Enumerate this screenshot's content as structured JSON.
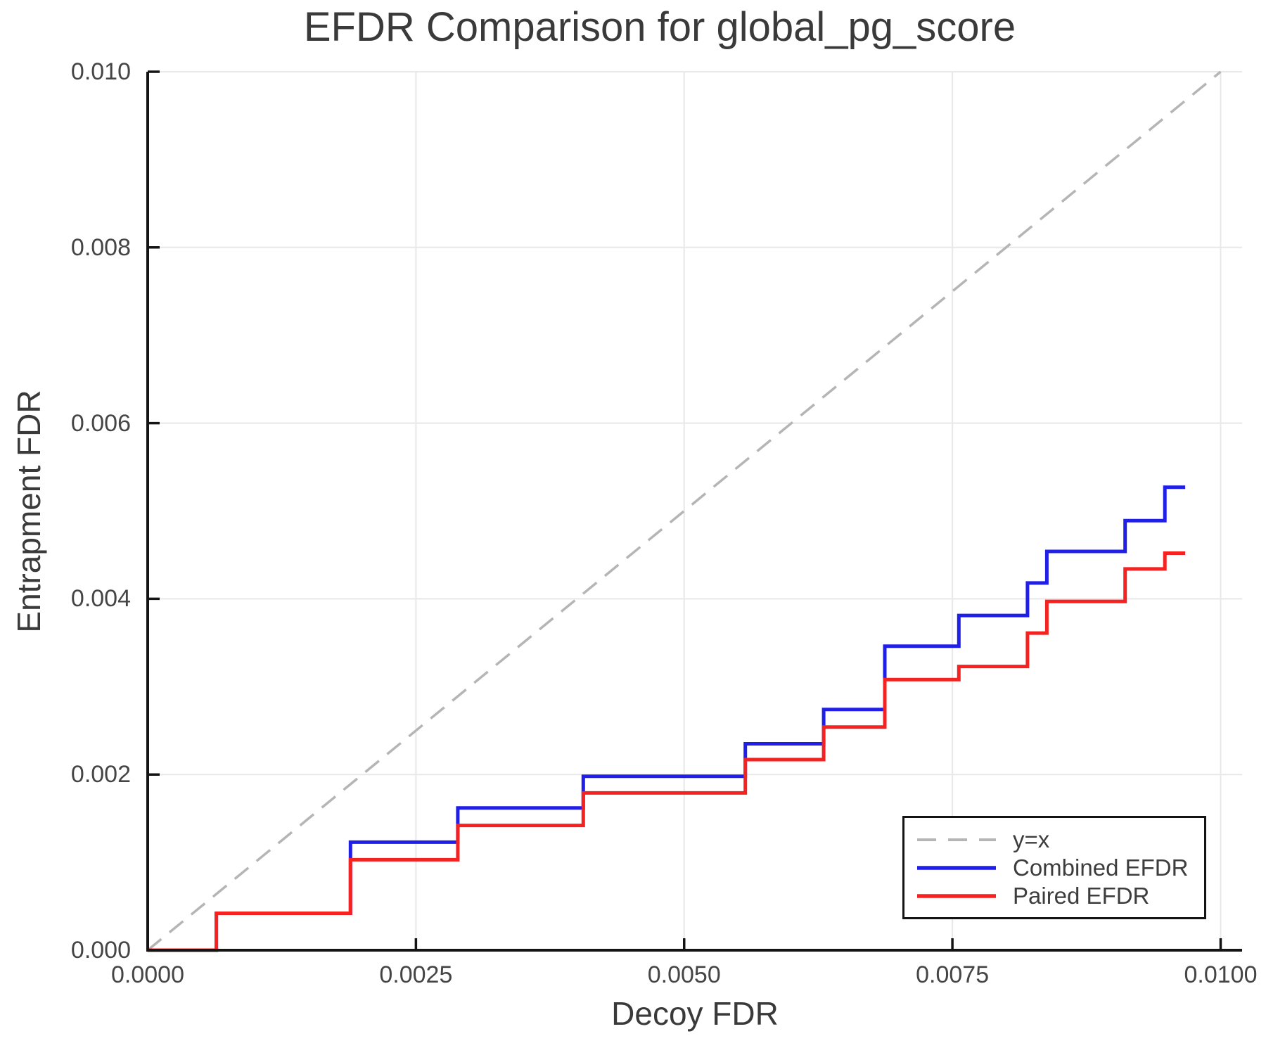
{
  "chart_data": {
    "type": "line",
    "title": "EFDR Comparison for global_pg_score",
    "xlabel": "Decoy FDR",
    "ylabel": "Entrapment FDR",
    "xlim": [
      0,
      0.0102
    ],
    "ylim": [
      0,
      0.01
    ],
    "grid": true,
    "tick_direction": "in",
    "legend_position": "lower right",
    "xtick_values": [
      0.0,
      0.0025,
      0.005,
      0.0075,
      0.01
    ],
    "xtick_labels": [
      "0.0000",
      "0.0025",
      "0.0050",
      "0.0075",
      "0.0100"
    ],
    "ytick_values": [
      0.0,
      0.002,
      0.004,
      0.006,
      0.008,
      0.01
    ],
    "ytick_labels": [
      "0.000",
      "0.002",
      "0.004",
      "0.006",
      "0.008",
      "0.010"
    ],
    "colors": {
      "grid": "#e8e8e8",
      "spine": "#141414",
      "identity": "#b5b5b5",
      "combined": "#1f1fe8",
      "paired": "#f52222"
    },
    "series": [
      {
        "name": "y=x",
        "kind": "identity",
        "style": "dashed",
        "color": "#b5b5b5",
        "points": [
          [
            0,
            0
          ],
          [
            0.01,
            0.01
          ]
        ]
      },
      {
        "name": "Combined EFDR",
        "kind": "step",
        "style": "solid",
        "color": "#1f1fe8",
        "start": [
          0,
          0
        ],
        "jump_x": [
          0.00064,
          0.00189,
          0.00289,
          0.00406,
          0.00557,
          0.0063,
          0.00687,
          0.00756,
          0.0082,
          0.00838,
          0.00911,
          0.00948
        ],
        "levels": [
          0.00042,
          0.00123,
          0.00162,
          0.00198,
          0.00235,
          0.00274,
          0.00346,
          0.00381,
          0.00418,
          0.00454,
          0.00489,
          0.00527
        ],
        "x_end": 0.00967
      },
      {
        "name": "Paired EFDR",
        "kind": "step",
        "style": "solid",
        "color": "#f52222",
        "start": [
          0,
          0
        ],
        "jump_x": [
          0.00064,
          0.00189,
          0.00289,
          0.00406,
          0.00557,
          0.0063,
          0.00687,
          0.00756,
          0.0082,
          0.00838,
          0.00911,
          0.00948
        ],
        "levels": [
          0.00042,
          0.00103,
          0.00142,
          0.00179,
          0.00217,
          0.00254,
          0.00308,
          0.00323,
          0.00361,
          0.00397,
          0.00434,
          0.00452
        ],
        "x_end": 0.00967
      }
    ]
  }
}
